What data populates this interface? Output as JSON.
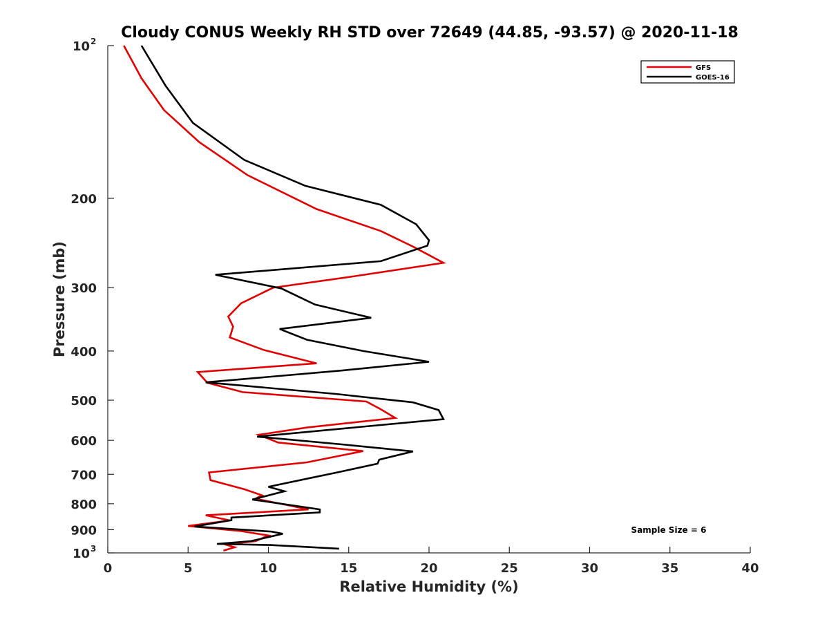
{
  "chart_data": {
    "type": "line",
    "title": "Cloudy CONUS Weekly RH STD over 72649 (44.85, -93.57) @ 2020-11-18",
    "xlabel": "Relative Humidity (%)",
    "ylabel": "Pressure (mb)",
    "xlim": [
      0,
      40
    ],
    "ylim": [
      100,
      1000
    ],
    "y_scale": "log",
    "y_reversed": true,
    "grid": false,
    "legend_position": "top-right",
    "x_ticks": [
      0,
      5,
      10,
      15,
      20,
      25,
      30,
      35,
      40
    ],
    "x_tick_labels": [
      "0",
      "5",
      "10",
      "15",
      "20",
      "25",
      "30",
      "35",
      "40"
    ],
    "y_ticks": [
      {
        "value": 100,
        "base": "10",
        "exp": "2"
      },
      {
        "value": 200,
        "label": "200"
      },
      {
        "value": 300,
        "label": "300"
      },
      {
        "value": 400,
        "label": "400"
      },
      {
        "value": 500,
        "label": "500"
      },
      {
        "value": 600,
        "label": "600"
      },
      {
        "value": 700,
        "label": "700"
      },
      {
        "value": 800,
        "label": "800"
      },
      {
        "value": 900,
        "label": "900"
      },
      {
        "value": 1000,
        "base": "10",
        "exp": "3"
      }
    ],
    "annotation": "Sample Size = 6",
    "series": [
      {
        "name": "GFS",
        "color": "#e00000",
        "points": [
          [
            1.0,
            100
          ],
          [
            2.1,
            116
          ],
          [
            3.5,
            134
          ],
          [
            5.7,
            155
          ],
          [
            8.7,
            180
          ],
          [
            13.0,
            210
          ],
          [
            17.0,
            232
          ],
          [
            19.0,
            249
          ],
          [
            20.9,
            268
          ],
          [
            15.3,
            285
          ],
          [
            10.3,
            300
          ],
          [
            8.3,
            322
          ],
          [
            7.5,
            342
          ],
          [
            7.8,
            358
          ],
          [
            7.6,
            376
          ],
          [
            9.7,
            398
          ],
          [
            13.0,
            423
          ],
          [
            5.6,
            440
          ],
          [
            6.2,
            462
          ],
          [
            8.4,
            482
          ],
          [
            16.1,
            503
          ],
          [
            17.0,
            521
          ],
          [
            17.9,
            542
          ],
          [
            12.4,
            566
          ],
          [
            9.4,
            585
          ],
          [
            10.6,
            606
          ],
          [
            15.9,
            630
          ],
          [
            12.4,
            663
          ],
          [
            6.3,
            694
          ],
          [
            6.4,
            719
          ],
          [
            8.5,
            749
          ],
          [
            9.6,
            770
          ],
          [
            9.2,
            782
          ],
          [
            11.5,
            809
          ],
          [
            12.5,
            821
          ],
          [
            6.1,
            843
          ],
          [
            7.6,
            863
          ],
          [
            5.0,
            885
          ],
          [
            8.3,
            906
          ],
          [
            10.0,
            924
          ],
          [
            9.2,
            948
          ],
          [
            7.3,
            962
          ],
          [
            7.9,
            975
          ],
          [
            7.2,
            990
          ]
        ]
      },
      {
        "name": "GOES-16",
        "color": "#000000",
        "points": [
          [
            2.1,
            100
          ],
          [
            3.6,
            120
          ],
          [
            5.3,
            142
          ],
          [
            8.5,
            168
          ],
          [
            12.3,
            189
          ],
          [
            17.0,
            206
          ],
          [
            19.2,
            225
          ],
          [
            20.0,
            242
          ],
          [
            19.9,
            248
          ],
          [
            17.0,
            266
          ],
          [
            6.7,
            283
          ],
          [
            10.8,
            301
          ],
          [
            12.9,
            324
          ],
          [
            16.4,
            344
          ],
          [
            10.7,
            362
          ],
          [
            12.4,
            380
          ],
          [
            15.9,
            400
          ],
          [
            20.0,
            420
          ],
          [
            14.6,
            437
          ],
          [
            6.1,
            461
          ],
          [
            14.2,
            486
          ],
          [
            19.0,
            505
          ],
          [
            20.6,
            523
          ],
          [
            20.9,
            545
          ],
          [
            15.6,
            565
          ],
          [
            9.3,
            590
          ],
          [
            14.8,
            612
          ],
          [
            19.0,
            631
          ],
          [
            16.9,
            655
          ],
          [
            16.8,
            667
          ],
          [
            14.2,
            695
          ],
          [
            12.5,
            713
          ],
          [
            10.0,
            741
          ],
          [
            11.0,
            756
          ],
          [
            9.0,
            785
          ],
          [
            13.2,
            821
          ],
          [
            13.2,
            832
          ],
          [
            7.7,
            852
          ],
          [
            7.7,
            862
          ],
          [
            5.4,
            887
          ],
          [
            10.2,
            908
          ],
          [
            10.9,
            917
          ],
          [
            8.9,
            948
          ],
          [
            6.8,
            960
          ],
          [
            10.1,
            965
          ],
          [
            14.4,
            981
          ]
        ]
      }
    ]
  }
}
